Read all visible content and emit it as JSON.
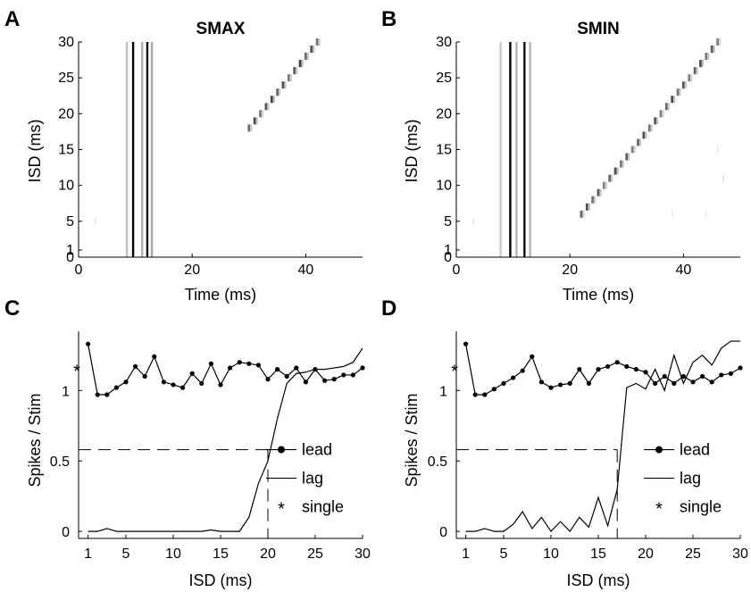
{
  "panels": [
    {
      "letter": "A",
      "title": "SMAX",
      "chart_data": {
        "type": "heatmap",
        "xlabel": "Time (ms)",
        "ylabel": "ISD (ms)",
        "xlim": [
          0,
          50
        ],
        "ylim": [
          0,
          30
        ],
        "xticks": [
          "0",
          "20",
          "40"
        ],
        "yticks": [
          "0",
          "1",
          "5",
          "10",
          "15",
          "20",
          "25",
          "30"
        ],
        "vertical_bands": [
          {
            "t": 8.5,
            "intensity": 0.25
          },
          {
            "t": 9.6,
            "intensity": 1.0
          },
          {
            "t": 11.2,
            "intensity": 0.3
          },
          {
            "t": 12.1,
            "intensity": 0.95
          },
          {
            "t": 12.9,
            "intensity": 0.35
          }
        ],
        "diagonal_spikes": {
          "isd_start": 18,
          "isd_end": 30,
          "time_offset": 12,
          "intensity": 0.75
        },
        "faint_spikes": [
          {
            "t": 3,
            "isd": 5,
            "intensity": 0.08
          }
        ]
      }
    },
    {
      "letter": "B",
      "title": "SMIN",
      "chart_data": {
        "type": "heatmap",
        "xlabel": "Time (ms)",
        "ylabel": "ISD (ms)",
        "xlim": [
          0,
          50
        ],
        "ylim": [
          0,
          30
        ],
        "xticks": [
          "0",
          "20",
          "40"
        ],
        "yticks": [
          "0",
          "1",
          "5",
          "10",
          "15",
          "20",
          "25",
          "30"
        ],
        "vertical_bands": [
          {
            "t": 7.8,
            "intensity": 0.2
          },
          {
            "t": 9.5,
            "intensity": 1.0
          },
          {
            "t": 10.6,
            "intensity": 0.3
          },
          {
            "t": 12.0,
            "intensity": 0.95
          },
          {
            "t": 13.0,
            "intensity": 0.3
          }
        ],
        "diagonal_spikes": {
          "isd_start": 6,
          "isd_end": 30,
          "time_offset": 16,
          "intensity": 0.7
        },
        "faint_spikes": [
          {
            "t": 3,
            "isd": 5,
            "intensity": 0.08
          },
          {
            "t": 46,
            "isd": 15,
            "intensity": 0.1
          },
          {
            "t": 47,
            "isd": 11,
            "intensity": 0.1
          },
          {
            "t": 38,
            "isd": 6,
            "intensity": 0.08
          },
          {
            "t": 44,
            "isd": 6,
            "intensity": 0.08
          }
        ]
      }
    },
    {
      "letter": "C",
      "chart_data": {
        "type": "line",
        "xlabel": "ISD (ms)",
        "ylabel": "Spikes / Stim",
        "xlim": [
          0,
          30
        ],
        "ylim": [
          -0.05,
          1.42
        ],
        "xticks": [
          "1",
          "5",
          "10",
          "15",
          "20",
          "25",
          "30"
        ],
        "yticks": [
          "0",
          "0.5",
          "1"
        ],
        "x": [
          1,
          2,
          3,
          4,
          5,
          6,
          7,
          8,
          9,
          10,
          11,
          12,
          13,
          14,
          15,
          16,
          17,
          18,
          19,
          20,
          21,
          22,
          23,
          24,
          25,
          26,
          27,
          28,
          29,
          30
        ],
        "series": [
          {
            "name": "lead",
            "marker": "dot",
            "values": [
              1.33,
              0.97,
              0.97,
              1.02,
              1.06,
              1.17,
              1.1,
              1.24,
              1.06,
              1.04,
              1.02,
              1.12,
              1.05,
              1.19,
              1.04,
              1.16,
              1.2,
              1.19,
              1.18,
              1.08,
              1.15,
              1.1,
              1.16,
              1.06,
              1.15,
              1.07,
              1.08,
              1.11,
              1.11,
              1.16
            ]
          },
          {
            "name": "lag",
            "marker": "none",
            "values": [
              0,
              0,
              0.02,
              0,
              0,
              0,
              0,
              0,
              0,
              0,
              0,
              0,
              0,
              0.01,
              0,
              0,
              0,
              0.1,
              0.34,
              0.5,
              0.8,
              1.05,
              1.12,
              1.13,
              1.15,
              1.15,
              1.16,
              1.17,
              1.2,
              1.3
            ]
          }
        ],
        "single": {
          "label": "single",
          "value": 1.15
        },
        "threshold": {
          "y": 0.58,
          "x": 20
        },
        "legend": [
          "lead",
          "lag",
          "single"
        ],
        "legend_position": "right"
      }
    },
    {
      "letter": "D",
      "chart_data": {
        "type": "line",
        "xlabel": "ISD (ms)",
        "ylabel": "Spikes / Stim",
        "xlim": [
          0,
          30
        ],
        "ylim": [
          -0.05,
          1.42
        ],
        "xticks": [
          "1",
          "5",
          "10",
          "15",
          "20",
          "25",
          "30"
        ],
        "yticks": [
          "0",
          "0.5",
          "1"
        ],
        "x": [
          1,
          2,
          3,
          4,
          5,
          6,
          7,
          8,
          9,
          10,
          11,
          12,
          13,
          14,
          15,
          16,
          17,
          18,
          19,
          20,
          21,
          22,
          23,
          24,
          25,
          26,
          27,
          28,
          29,
          30
        ],
        "series": [
          {
            "name": "lead",
            "marker": "dot",
            "values": [
              1.33,
              0.97,
              0.97,
              1.01,
              1.05,
              1.09,
              1.14,
              1.24,
              1.06,
              1.02,
              1.04,
              1.05,
              1.15,
              1.05,
              1.15,
              1.17,
              1.2,
              1.17,
              1.15,
              1.13,
              1.05,
              1.1,
              1.05,
              1.1,
              1.06,
              1.1,
              1.06,
              1.11,
              1.12,
              1.16
            ]
          },
          {
            "name": "lag",
            "marker": "none",
            "values": [
              0,
              0,
              0.02,
              0,
              0,
              0.05,
              0.14,
              0.02,
              0.1,
              0,
              0.07,
              0,
              0.1,
              0.03,
              0.24,
              0.04,
              0.3,
              1.02,
              1.05,
              1.01,
              1.15,
              1.0,
              1.25,
              1.05,
              1.2,
              1.25,
              1.18,
              1.3,
              1.35,
              1.35
            ]
          }
        ],
        "single": {
          "label": "single",
          "value": 1.15
        },
        "threshold": {
          "y": 0.58,
          "x": 17
        },
        "legend": [
          "lead",
          "lag",
          "single"
        ],
        "legend_position": "right"
      }
    }
  ]
}
